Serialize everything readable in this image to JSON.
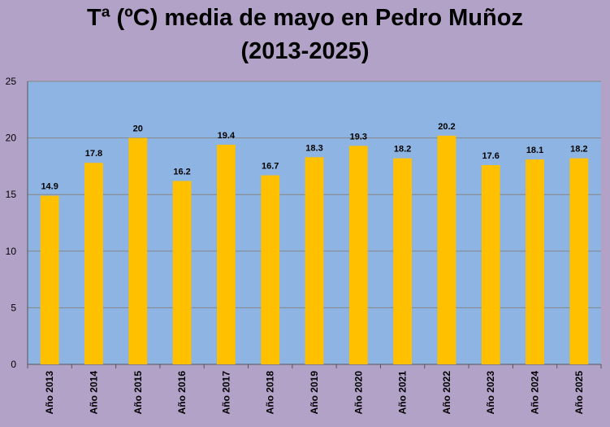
{
  "chart_data": {
    "type": "bar",
    "title_line1": "Tª (ºC) media de mayo en Pedro Muñoz",
    "title_line2": "(2013-2025)",
    "xlabel": "",
    "ylabel": "",
    "categories": [
      "Año 2013",
      "Año 2014",
      "Año 2015",
      "Año 2016",
      "Año 2017",
      "Año 2018",
      "Año 2019",
      "Año 2020",
      "Año 2021",
      "Año 2022",
      "Año 2023",
      "Año 2024",
      "Año 2025"
    ],
    "values": [
      14.9,
      17.8,
      20,
      16.2,
      19.4,
      16.7,
      18.3,
      19.3,
      18.2,
      20.2,
      17.6,
      18.1,
      18.2
    ],
    "value_labels": [
      "14.9",
      "17.8",
      "20",
      "16.2",
      "19.4",
      "16.7",
      "18.3",
      "19.3",
      "18.2",
      "20.2",
      "17.6",
      "18.1",
      "18.2"
    ],
    "ylim": [
      0,
      25
    ],
    "yticks": [
      0,
      5,
      10,
      15,
      20,
      25
    ],
    "ytick_labels": [
      "0",
      "5",
      "10",
      "15",
      "20",
      "25"
    ],
    "grid": true,
    "legend": "none",
    "colors": {
      "background": "#b3a2c8",
      "plot_area": "#8db4e3",
      "bar": "#ffc000",
      "gridline": "#868686"
    }
  }
}
